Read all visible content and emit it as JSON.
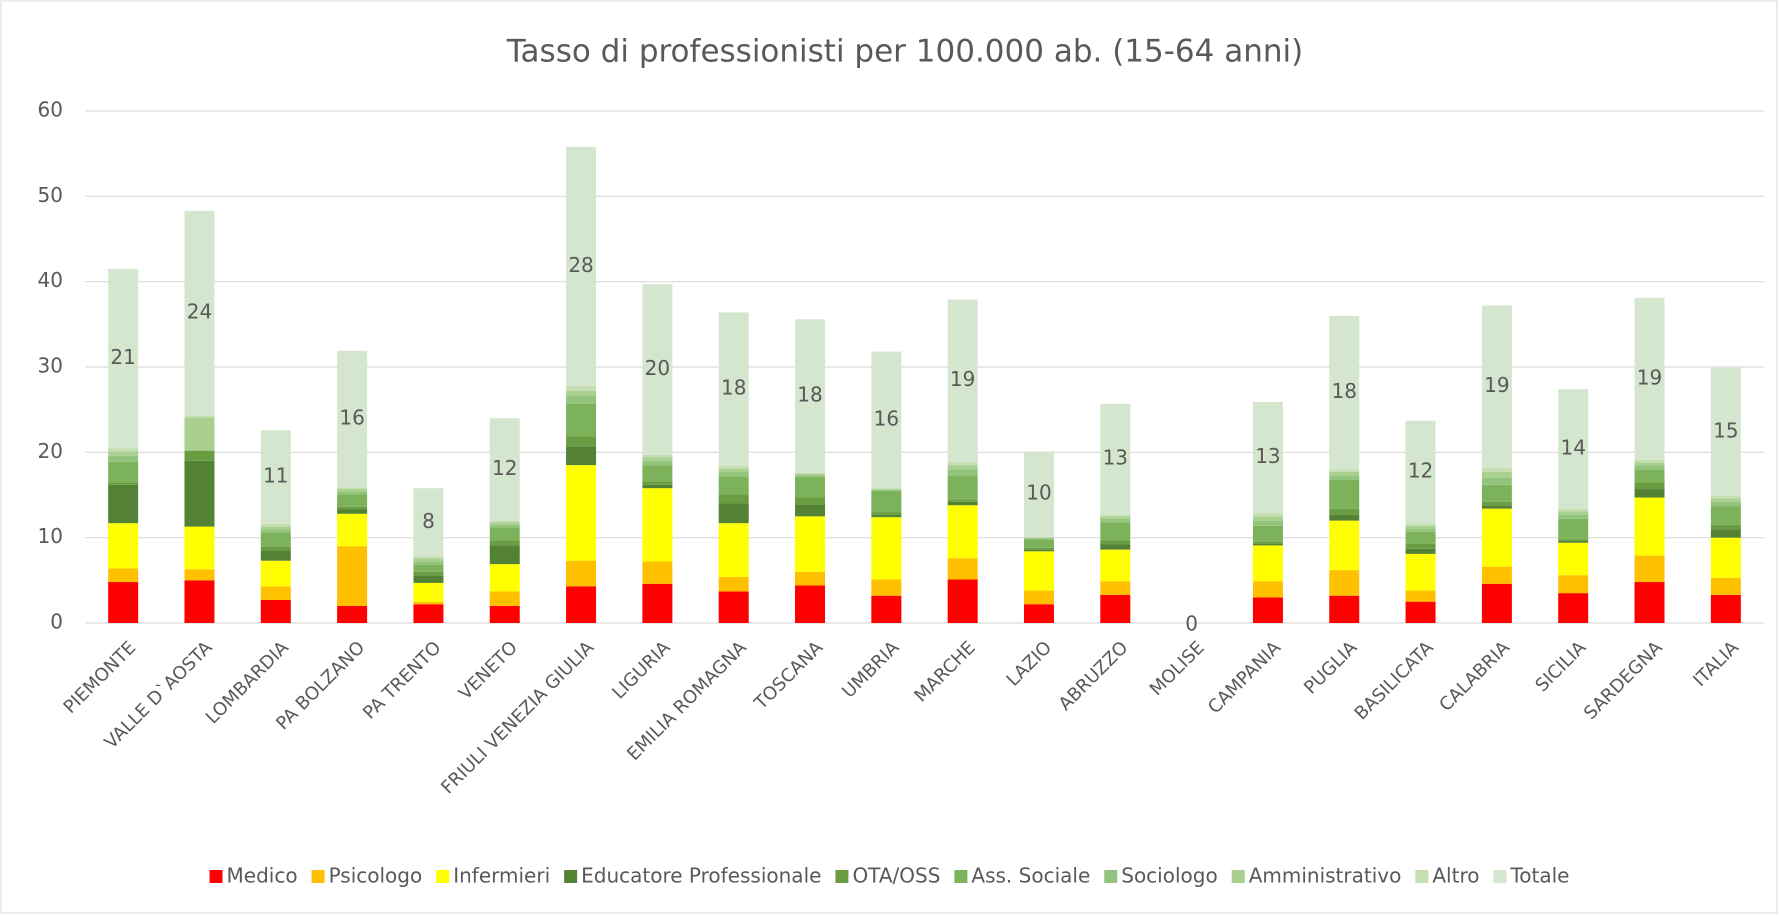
{
  "chart_data": {
    "type": "stacked_bar",
    "title": "Tasso di professionisti per 100.000 ab. (15-64 anni)",
    "categories": [
      "PIEMONTE",
      "VALLE D`AOSTA",
      "LOMBARDIA",
      "PA BOLZANO",
      "PA TRENTO",
      "VENETO",
      "FRIULI VENEZIA GIULIA",
      "LIGURIA",
      "EMILIA ROMAGNA",
      "TOSCANA",
      "UMBRIA",
      "MARCHE",
      "LAZIO",
      "ABRUZZO",
      "MOLISE",
      "CAMPANIA",
      "PUGLIA",
      "BASILICATA",
      "CALABRIA",
      "SICILIA",
      "SARDEGNA",
      "ITALIA"
    ],
    "series": [
      {
        "name": "Medico",
        "color": "#ff0000",
        "values": [
          4.8,
          5.0,
          2.7,
          2.0,
          2.2,
          2.0,
          4.3,
          4.6,
          3.7,
          4.4,
          3.2,
          5.1,
          2.2,
          3.3,
          0,
          3.0,
          3.2,
          2.5,
          4.6,
          3.5,
          4.8,
          3.3
        ]
      },
      {
        "name": "Psicologo",
        "color": "#ffc000",
        "values": [
          1.6,
          1.3,
          1.6,
          7.0,
          0.3,
          1.7,
          3.0,
          2.6,
          1.7,
          1.6,
          1.9,
          2.5,
          1.6,
          1.6,
          0,
          1.9,
          3.0,
          1.3,
          2.0,
          2.1,
          3.1,
          2.0
        ]
      },
      {
        "name": "Infermieri",
        "color": "#ffff00",
        "values": [
          5.3,
          5.0,
          3.0,
          3.8,
          2.2,
          3.2,
          11.2,
          8.6,
          6.3,
          6.5,
          7.3,
          6.2,
          4.6,
          3.7,
          0,
          4.2,
          5.8,
          4.3,
          6.8,
          3.8,
          6.8,
          4.7
        ]
      },
      {
        "name": "Educatore Professionale",
        "color": "#548235",
        "values": [
          4.5,
          7.7,
          1.2,
          0.5,
          0.9,
          2.2,
          2.2,
          0.4,
          2.3,
          1.4,
          0.3,
          0.4,
          0.2,
          0.6,
          0,
          0.2,
          0.7,
          0.6,
          0.4,
          0.2,
          1.0,
          1.0
        ]
      },
      {
        "name": "OTA/OSS",
        "color": "#6a9d42",
        "values": [
          0.3,
          1.2,
          0.5,
          0.3,
          0.4,
          0.6,
          1.2,
          0.4,
          1.1,
          0.8,
          0.3,
          0.3,
          0.2,
          0.5,
          0,
          0.2,
          0.7,
          0.6,
          0.4,
          0.2,
          0.8,
          0.5
        ]
      },
      {
        "name": "Ass. Sociale",
        "color": "#7cb35a",
        "values": [
          2.4,
          0,
          1.6,
          1.5,
          0.8,
          1.5,
          3.8,
          1.9,
          2.1,
          2.4,
          2.5,
          2.8,
          1.0,
          2.1,
          0,
          1.9,
          3.4,
          1.4,
          2.0,
          2.4,
          1.5,
          2.2
        ]
      },
      {
        "name": "Sociologo",
        "color": "#93c47d",
        "values": [
          0.7,
          0,
          0.4,
          0.3,
          0.4,
          0.3,
          0.9,
          0.5,
          0.5,
          0.2,
          0.1,
          0.7,
          0.1,
          0.4,
          0,
          0.6,
          0.5,
          0.4,
          0.8,
          0.5,
          0.5,
          0.5
        ]
      },
      {
        "name": "Amministrativo",
        "color": "#a9d08e",
        "values": [
          0.5,
          3.9,
          0.3,
          0.3,
          0.4,
          0.3,
          0.6,
          0.4,
          0.4,
          0.2,
          0.1,
          0.5,
          0.1,
          0.3,
          0,
          0.5,
          0.4,
          0.3,
          0.7,
          0.4,
          0.3,
          0.4
        ]
      },
      {
        "name": "Altro",
        "color": "#c5dfb3",
        "values": [
          0.4,
          0.2,
          0.3,
          0.2,
          0.2,
          0.2,
          0.6,
          0.3,
          0.3,
          0.1,
          0.1,
          0.4,
          0.1,
          0.2,
          0,
          0.4,
          0.3,
          0.3,
          0.5,
          0.3,
          0.3,
          0.3
        ]
      },
      {
        "name": "Totale",
        "color": "#d5e6cf",
        "values": [
          21,
          24,
          11,
          16,
          8,
          12,
          28,
          20,
          18,
          18,
          16,
          19,
          10,
          13,
          0,
          13,
          18,
          12,
          19,
          14,
          19,
          15
        ],
        "data_labels": true
      }
    ],
    "ylim": [
      0,
      60
    ],
    "yticks": [
      0,
      10,
      20,
      30,
      40,
      50,
      60
    ],
    "grid": true,
    "legend": "bottom"
  }
}
